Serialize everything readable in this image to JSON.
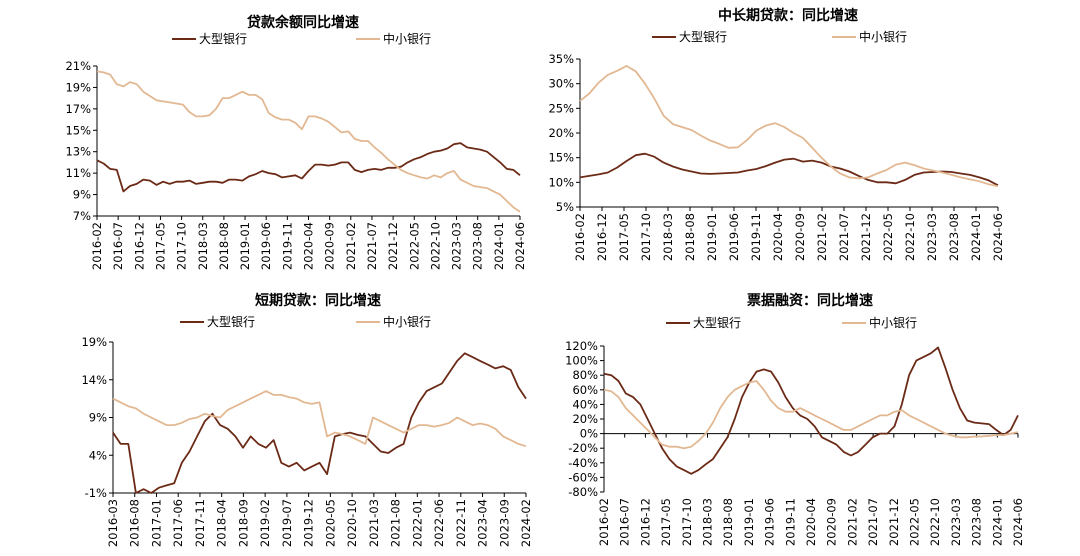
{
  "colors": {
    "large_banks": "#6B2A16",
    "small_mid_banks": "#E2B892"
  },
  "chart_data": [
    {
      "type": "line",
      "title": "贷款余额同比增速",
      "series": [
        {
          "name": "大型银行",
          "values": [
            12.2,
            11.9,
            11.4,
            11.3,
            9.3,
            9.8,
            10.0,
            10.4,
            10.3,
            9.9,
            10.2,
            10.0,
            10.2,
            10.2,
            10.3,
            10.0,
            10.1,
            10.2,
            10.2,
            10.1,
            10.4,
            10.4,
            10.3,
            10.7,
            10.9,
            11.2,
            11.0,
            10.9,
            10.6,
            10.7,
            10.8,
            10.5,
            11.2,
            11.8,
            11.8,
            11.7,
            11.8,
            12.0,
            12.0,
            11.3,
            11.1,
            11.3,
            11.4,
            11.3,
            11.5,
            11.5,
            11.6,
            12.0,
            12.3,
            12.5,
            12.8,
            13.0,
            13.1,
            13.3,
            13.7,
            13.8,
            13.4,
            13.3,
            13.2,
            13.0,
            12.5,
            12.0,
            11.4,
            11.3,
            10.8
          ]
        },
        {
          "name": "中小银行",
          "values": [
            20.5,
            20.4,
            20.2,
            19.3,
            19.1,
            19.5,
            19.3,
            18.6,
            18.2,
            17.8,
            17.7,
            17.6,
            17.5,
            17.4,
            16.7,
            16.3,
            16.3,
            16.4,
            17.0,
            18.0,
            18.0,
            18.3,
            18.6,
            18.3,
            18.3,
            17.9,
            16.6,
            16.2,
            16.0,
            16.0,
            15.7,
            15.1,
            16.3,
            16.3,
            16.1,
            15.8,
            15.3,
            14.8,
            14.9,
            14.2,
            14.0,
            14.0,
            13.4,
            12.9,
            12.3,
            11.8,
            11.3,
            11.0,
            10.8,
            10.6,
            10.5,
            10.8,
            10.6,
            11.0,
            11.2,
            10.4,
            10.1,
            9.8,
            9.7,
            9.6,
            9.3,
            9.0,
            8.4,
            7.8,
            7.4
          ]
        }
      ],
      "xticks": [
        "2016-02",
        "2016-07",
        "2016-12",
        "2017-05",
        "2017-10",
        "2018-03",
        "2018-08",
        "2019-01",
        "2019-06",
        "2019-11",
        "2020-04",
        "2020-09",
        "2021-02",
        "2021-07",
        "2021-12",
        "2022-05",
        "2022-10",
        "2023-03",
        "2023-08",
        "2024-01",
        "2024-06"
      ],
      "yticks": [
        "21%",
        "19%",
        "17%",
        "15%",
        "13%",
        "11%",
        "9%",
        "7%"
      ],
      "ylim": [
        7,
        21
      ]
    },
    {
      "type": "line",
      "title": "中长期贷款：同比增速",
      "series": [
        {
          "name": "大型银行",
          "values": [
            11.0,
            11.3,
            11.6,
            12.0,
            13.0,
            14.3,
            15.5,
            15.8,
            15.2,
            14.0,
            13.2,
            12.6,
            12.2,
            11.8,
            11.7,
            11.8,
            11.9,
            12.0,
            12.4,
            12.7,
            13.3,
            14.0,
            14.6,
            14.8,
            14.2,
            14.4,
            14.0,
            13.2,
            12.8,
            12.2,
            11.3,
            10.5,
            10.0,
            10.0,
            9.8,
            10.5,
            11.5,
            12.0,
            12.1,
            12.2,
            12.1,
            11.8,
            11.5,
            11.0,
            10.4,
            9.4
          ]
        },
        {
          "name": "中小银行",
          "values": [
            26.5,
            28.0,
            30.2,
            31.8,
            32.6,
            33.6,
            32.5,
            30.0,
            27.0,
            23.5,
            21.8,
            21.2,
            20.6,
            19.5,
            18.5,
            17.8,
            17.0,
            17.1,
            18.6,
            20.5,
            21.5,
            22.0,
            21.2,
            20.0,
            19.0,
            17.0,
            15.0,
            13.2,
            11.8,
            11.0,
            10.8,
            11.0,
            11.8,
            12.5,
            13.6,
            14.0,
            13.5,
            12.8,
            12.4,
            12.0,
            11.5,
            11.0,
            10.6,
            10.2,
            9.6,
            9.2
          ]
        }
      ],
      "xticks": [
        "2016-02",
        "2016-12",
        "2017-05",
        "2017-10",
        "2018-03",
        "2018-08",
        "2019-01",
        "2019-06",
        "2019-11",
        "2020-04",
        "2020-09",
        "2021-02",
        "2021-07",
        "2021-12",
        "2022-05",
        "2022-10",
        "2023-03",
        "2023-08",
        "2024-01",
        "2024-06"
      ],
      "yticks": [
        "35%",
        "30%",
        "25%",
        "20%",
        "15%",
        "10%",
        "5%"
      ],
      "ylim": [
        5,
        35
      ]
    },
    {
      "type": "line",
      "title": "短期贷款：同比增速",
      "series": [
        {
          "name": "大型银行",
          "values": [
            7.0,
            5.5,
            5.5,
            -1.0,
            -0.5,
            -1.0,
            -0.3,
            0.0,
            0.3,
            3.0,
            4.5,
            6.5,
            8.5,
            9.5,
            8.0,
            7.5,
            6.5,
            5.0,
            6.5,
            5.5,
            5.0,
            6.0,
            3.0,
            2.5,
            3.0,
            2.0,
            2.5,
            3.0,
            1.5,
            6.5,
            6.8,
            7.0,
            6.7,
            6.5,
            5.5,
            4.5,
            4.3,
            5.0,
            5.5,
            9.0,
            11.0,
            12.5,
            13.0,
            13.5,
            15.0,
            16.5,
            17.5,
            17.0,
            16.5,
            16.0,
            15.5,
            15.8,
            15.3,
            13.0,
            11.5
          ]
        },
        {
          "name": "中小银行",
          "values": [
            11.5,
            11.0,
            10.5,
            10.2,
            9.5,
            9.0,
            8.5,
            8.0,
            8.0,
            8.3,
            8.8,
            9.0,
            9.5,
            9.2,
            9.0,
            10.0,
            10.5,
            11.0,
            11.5,
            12.0,
            12.5,
            12.0,
            12.0,
            11.7,
            11.5,
            11.0,
            10.8,
            11.0,
            6.5,
            7.0,
            6.8,
            6.5,
            6.0,
            5.5,
            9.0,
            8.5,
            8.0,
            7.5,
            7.0,
            7.5,
            8.0,
            8.0,
            7.8,
            8.0,
            8.3,
            9.0,
            8.5,
            8.0,
            8.2,
            8.0,
            7.5,
            6.5,
            6.0,
            5.5,
            5.2
          ]
        }
      ],
      "xticks": [
        "2016-03",
        "2016-08",
        "2017-01",
        "2017-06",
        "2017-11",
        "2018-04",
        "2018-09",
        "2019-02",
        "2019-07",
        "2019-12",
        "2020-05",
        "2020-10",
        "2021-03",
        "2021-08",
        "2022-01",
        "2022-06",
        "2022-11",
        "2023-04",
        "2023-09",
        "2024-02"
      ],
      "yticks": [
        "19%",
        "14%",
        "9%",
        "4%",
        "-1%"
      ],
      "ylim": [
        -1,
        19
      ]
    },
    {
      "type": "line",
      "title": "票据融资：同比增速",
      "series": [
        {
          "name": "大型银行",
          "values": [
            82,
            80,
            72,
            55,
            50,
            40,
            20,
            0,
            -20,
            -35,
            -45,
            -50,
            -55,
            -50,
            -42,
            -35,
            -20,
            -5,
            20,
            50,
            70,
            85,
            88,
            85,
            70,
            50,
            35,
            25,
            20,
            10,
            -5,
            -10,
            -15,
            -25,
            -30,
            -25,
            -15,
            -5,
            0,
            0,
            10,
            40,
            80,
            100,
            105,
            110,
            118,
            90,
            60,
            35,
            18,
            15,
            14,
            13,
            5,
            -2,
            5,
            25
          ]
        },
        {
          "name": "中小银行",
          "values": [
            60,
            58,
            50,
            35,
            25,
            15,
            5,
            -5,
            -15,
            -18,
            -18,
            -20,
            -18,
            -10,
            0,
            15,
            35,
            50,
            60,
            65,
            70,
            72,
            60,
            45,
            35,
            30,
            30,
            35,
            30,
            25,
            20,
            15,
            10,
            5,
            5,
            10,
            15,
            20,
            25,
            25,
            30,
            32,
            25,
            20,
            15,
            10,
            5,
            0,
            -3,
            -5,
            -5,
            -4,
            -4,
            -3,
            -2,
            -2,
            0,
            2
          ]
        }
      ],
      "xticks": [
        "2016-02",
        "2016-07",
        "2016-12",
        "2017-05",
        "2017-10",
        "2018-03",
        "2018-08",
        "2019-01",
        "2019-06",
        "2019-11",
        "2020-04",
        "2020-09",
        "2021-02",
        "2021-07",
        "2021-12",
        "2022-05",
        "2022-10",
        "2023-03",
        "2023-08",
        "2024-01",
        "2024-06"
      ],
      "yticks": [
        "120%",
        "100%",
        "80%",
        "60%",
        "40%",
        "20%",
        "0%",
        "-20%",
        "-40%",
        "-60%",
        "-80%"
      ],
      "ylim": [
        -80,
        120
      ]
    }
  ]
}
